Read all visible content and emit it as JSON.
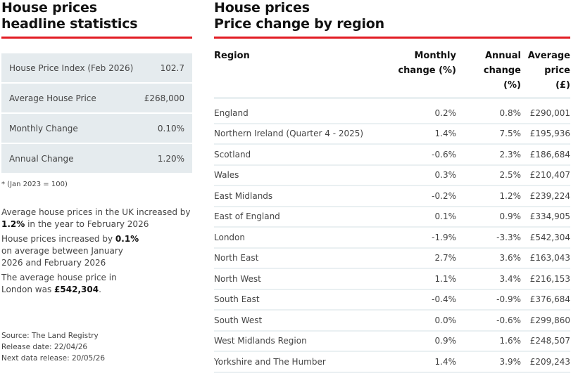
{
  "left": {
    "title_line1": "House prices",
    "title_line2": "headline statistics",
    "stats": [
      {
        "label": "House Price Index (Feb 2026)",
        "value": "102.7"
      },
      {
        "label": "Average House Price",
        "value": "£268,000"
      },
      {
        "label": "Monthly Change",
        "value": "0.10%"
      },
      {
        "label": "Annual Change",
        "value": "1.20%"
      }
    ],
    "footnote": "* (Jan 2023 = 100)",
    "summary": [
      {
        "pre": "Average house prices in the UK increased by ",
        "bold": "1.2%",
        "post": " in the year to February 2026"
      },
      {
        "pre": "House prices increased by ",
        "bold": "0.1%",
        "post": " on average between January 2026 and February 2026"
      },
      {
        "pre": "The average house price in London was ",
        "bold": "£542,304",
        "post": "."
      }
    ],
    "source": "Source: The Land Registry",
    "release_date": "Release date: 22/04/26",
    "next_release": "Next data release: 20/05/26"
  },
  "right": {
    "title_line1": "House prices",
    "title_line2": "Price change by region",
    "headers": {
      "region": "Region",
      "monthly": "Monthly change (%)",
      "annual": "Annual change (%)",
      "price": "Average price (£)"
    },
    "rows": [
      {
        "region": "England",
        "monthly": "0.2%",
        "annual": "0.8%",
        "price": "£290,001"
      },
      {
        "region": "Northern Ireland (Quarter 4 - 2025)",
        "monthly": "1.4%",
        "annual": "7.5%",
        "price": "£195,936"
      },
      {
        "region": "Scotland",
        "monthly": "-0.6%",
        "annual": "2.3%",
        "price": "£186,684"
      },
      {
        "region": "Wales",
        "monthly": "0.3%",
        "annual": "2.5%",
        "price": "£210,407"
      },
      {
        "region": "East Midlands",
        "monthly": "-0.2%",
        "annual": "1.2%",
        "price": "£239,224"
      },
      {
        "region": "East of England",
        "monthly": "0.1%",
        "annual": "0.9%",
        "price": "£334,905"
      },
      {
        "region": "London",
        "monthly": "-1.9%",
        "annual": "-3.3%",
        "price": "£542,304"
      },
      {
        "region": "North East",
        "monthly": "2.7%",
        "annual": "3.6%",
        "price": "£163,043"
      },
      {
        "region": "North West",
        "monthly": "1.1%",
        "annual": "3.4%",
        "price": "£216,153"
      },
      {
        "region": "South East",
        "monthly": "-0.4%",
        "annual": "-0.9%",
        "price": "£376,684"
      },
      {
        "region": "South West",
        "monthly": "0.0%",
        "annual": "-0.6%",
        "price": "£299,860"
      },
      {
        "region": "West Midlands Region",
        "monthly": "0.9%",
        "annual": "1.6%",
        "price": "£248,507"
      },
      {
        "region": "Yorkshire and The Humber",
        "monthly": "1.4%",
        "annual": "3.9%",
        "price": "£209,243"
      }
    ]
  },
  "colors": {
    "accent": "#e21d24",
    "stat_bg": "#e5ebee",
    "divider": "#eaf0f2"
  }
}
